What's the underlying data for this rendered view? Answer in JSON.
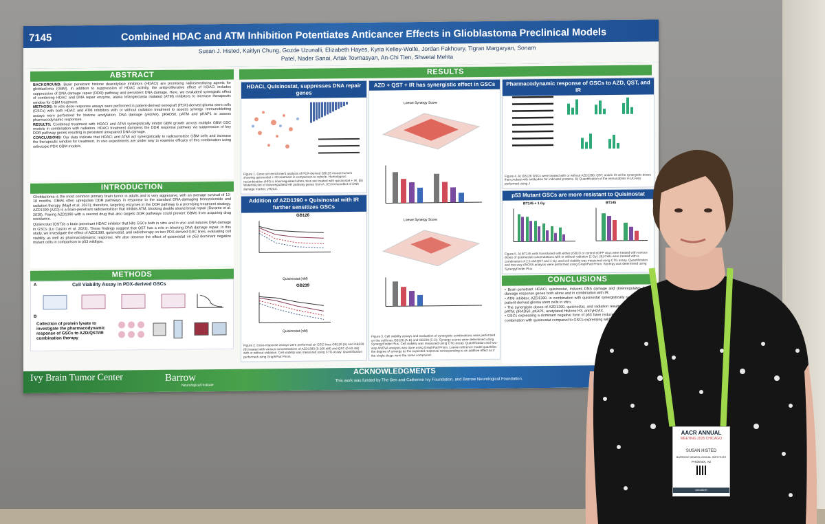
{
  "poster": {
    "id": "7145",
    "title": "Combined HDAC and ATM Inhibition Potentiates Anticancer Effects in Glioblastoma Preclinical Models",
    "authors_line1": "Susan J. Histed, Kaitlyn Chung, Gozde Uzunalli, Elizabeth Hayes, Kyria Kelley-Wolfe, Jordan Fakhoury, Tigran Margaryan, Sonam",
    "authors_line2": "Patel, Nader Sanai, Artak Tovmasyan, An-Chi Tien, Shwetal Mehta",
    "sections": {
      "abstract": "ABSTRACT",
      "introduction": "INTRODUCTION",
      "methods": "METHODS",
      "results": "RESULTS",
      "conclusions": "CONCLUSIONS",
      "acknowledgments": "ACKNOWLEDGMENTS"
    },
    "abstract": {
      "background_label": "BACKGROUND:",
      "background": "Brain penetrant histone deacetylase inhibitors (HDACi) are promising radiosensitizing agents for glioblastoma (GBM). In addition to suppression of HDAC activity, the antiproliferative effect of HDACi includes suppression of DNA damage repair (DDR) pathway and persistent DNA damage. Here, we evaluated synergistic effect of combining HDAC and DNA repair enzyme, ataxia telangiectasia mutated (ATM) inhibitors to increase therapeutic window for GBM treatment.",
      "methods_label": "METHODS:",
      "methods": "In vitro dose-response assays were performed in patient-derived xenograft (PDX)-derived glioma stem cells (GSCs) with both HDAC and ATM inhibitors with or without radiation treatment to assess synergy. Immunoblotting assays were performed for histone acetylation, DNA damage (γH2AX), pRAD50, pATM and pKAP1 to assess pharmacodynamic responses.",
      "results_label": "RESULTS:",
      "results": "Combined treatment with HDACi and ATMi synergistically inhibit GBM growth across multiple GBM GSC models in combination with radiation. HDACi treatment dampens the DDR response pathway via suppression of key DDR pathway genes resulting in persistent unrepaired DNA damage.",
      "conclusions_label": "CONCLUSIONS:",
      "conclusions": "Our data indicate that HDACi and ATMi act synergistically to radiosensitize GBM cells and increase the therapeutic window for treatment. In vivo experiments are under way to examine efficacy of this combination using orthotopic PDX GBM models."
    },
    "introduction": {
      "p1": "Glioblastoma is the most common primary brain tumor in adults and is very aggressive, with an average survival of 12-18 months. GBMs often upregulate DDR pathways in response to the standard DNA-damaging temozolomide and radiation therapy (Majd et al. 2021); therefore, targeting enzymes in the DDR pathway is a promising treatment strategy. AZD1390 (AZD) is a brain-penetrant radiosensitizer that inhibits ATM, blocking double strand break repair (Durante et al. 2018). Pairing AZD1390 with a second drug that also targets DDR pathways could prevent GBMs from acquiring drug resistance.",
      "p2": "Quisinostat (QST)is a brain penetrant HDAC inhibitor that kills GSCs both in vitro and in vivo and induces DNA damage in GSCs (Lo Cascio et al. 2023). These findings suggest that QST has a role in blocking DNA damage repair. In this study, we investigate the effect of AZD1390, quisinostat, and radiotherapy on two PDX-derived GSC lines, evaluating cell viability as well as pharmacodynamic response. We also observe the effect of quisinostat on p53 dominant negative mutant cells in comparison to p53 wildtype."
    },
    "methods": {
      "panel_a": "Cell Viability Assay in PDX-derived GSCs",
      "panel_b": "Collection of protein lysate to investigate the pharmacodynamic response of GSCs to AZD/QST/IR combination therapy"
    },
    "results_panels": {
      "p1_title": "HDACi, Quisinostat, suppresses DNA repair genes",
      "p1_caption": "Figure 1. Gene set enrichment analysis of PDX-derived GB126 mouse tumors showing quisinostat + IR treatment in comparison to vehicle. Homologous recombination (HR) is downregulated when mice are treated with quisinostat + IR. (B) Waterfall plot of downregulated HR pathway genes from A. (C) Immunoblot of DNA damage marker, γH2AX.",
      "p2_title": "Addition of AZD1390 + Quisinostat with IR further sensitizes GSCs",
      "p2_label_a": "GB126",
      "p2_label_b": "GB239",
      "p2_xlabel": "Quisinostat (nM)",
      "p2_caption": "Figure 2. Dose-response assays were performed on GSC lines GB126 (A) and GB239 (B) treated with various concentrations of AZD1390 (0-100 nM) and QST (0-50 nM) with or without radiation. Cell viability was measured using CTG assay. Quantification performed using GraphPad Prism.",
      "p3_title": "AZD + QST + IR has synergistic effect in GSCs",
      "p3_score_a": "Loewe Synergy Score",
      "p3_score_b": "Loewe Synergy Score",
      "p3_caption": "Figure 3. Cell viability assays and evaluation of synergistic combinations were performed on the cell lines GB126 (A-B) and GB239 (C-D). Synergy scores were determined using SynergyFinder Plus. Cell viability was measured using CTG assay. Quantification and two-way ANOVA analysis was done using GraphPad Prism. Loewe reference model quantifies the degree of synergy as the expected response corresponding to an additive effect as if the single drugs were the same compound.",
      "p4_title": "Pharmacodynamic response of GSCs to AZD, QST, and IR",
      "p4_caption": "Figure 4. A) GB126 GSCs were treated with or without AZD1390, QST, and/or IR at the synergistic doses then probed with antibodies for indicated proteins. B) Quantification of the immunoblots in (A) was performed using J",
      "p5_title": "p53 Mutant GSCs are more resistant to Quisinostat",
      "p5_label_a": "BT145 + 1 Gy",
      "p5_label_b": "BT145",
      "p5_caption": "Figure 5. A) BT145 cells transduced with either p53DD or control eGFP virus were treated with various doses of quisinostat concentrations with or without radiation (1 Gy). (B) Cells were treated with a combination of 2.5 nM QST and 1 Gy, and cell viability was measured using CTG assay. Quantification and two-way ANOVA analysis were performed using GraphPad Prism. Synergy was determined using SynergyFinder Plus."
    },
    "conclusions": {
      "b1": "Brain-penetrant HDACi, quisinostat, induces DNA damage and downregulates DNA damage response genes both alone and in combination with IR.",
      "b2": "ATM inhibitor, AZD1390, in combination with quisinostat synergistically radiosensitizes patient-derived glioma stem cells in vitro.",
      "b3": "The synergistic doses of AZD1390, quisinostat, and radiation results in suppression of pATM, pRAD50, pKAP1, acetylated Histone H3, and γH2AX.",
      "b4": "GSCs expressing a dominant negative form of p53 have reduced sensitivity to QST in combination with quisinostat compared to GSCs expressing wildtype p53."
    },
    "acknowledgments": "This work was funded by The Ben and Catherine Ivy Foundation, and Barrow Neurological Foundation.",
    "logo_ivy": "Ivy Brain Tumor Center",
    "logo_barrow": "Barrow",
    "logo_barrow_sub": "Neurological Institute"
  },
  "badge": {
    "event_line1": "AACR ANNUAL",
    "event_line2": "MEETING 2025 CHICAGO",
    "name": "SUSAN HISTED",
    "org": "BARROW NEUROLOGICAL INSTITUTE",
    "location": "PHOENIX, AZ",
    "role": "MEMBER"
  },
  "colors": {
    "banner_blue": "#1f4f93",
    "section_green": "#49a24a",
    "lanyard_green": "#9fd84a"
  }
}
